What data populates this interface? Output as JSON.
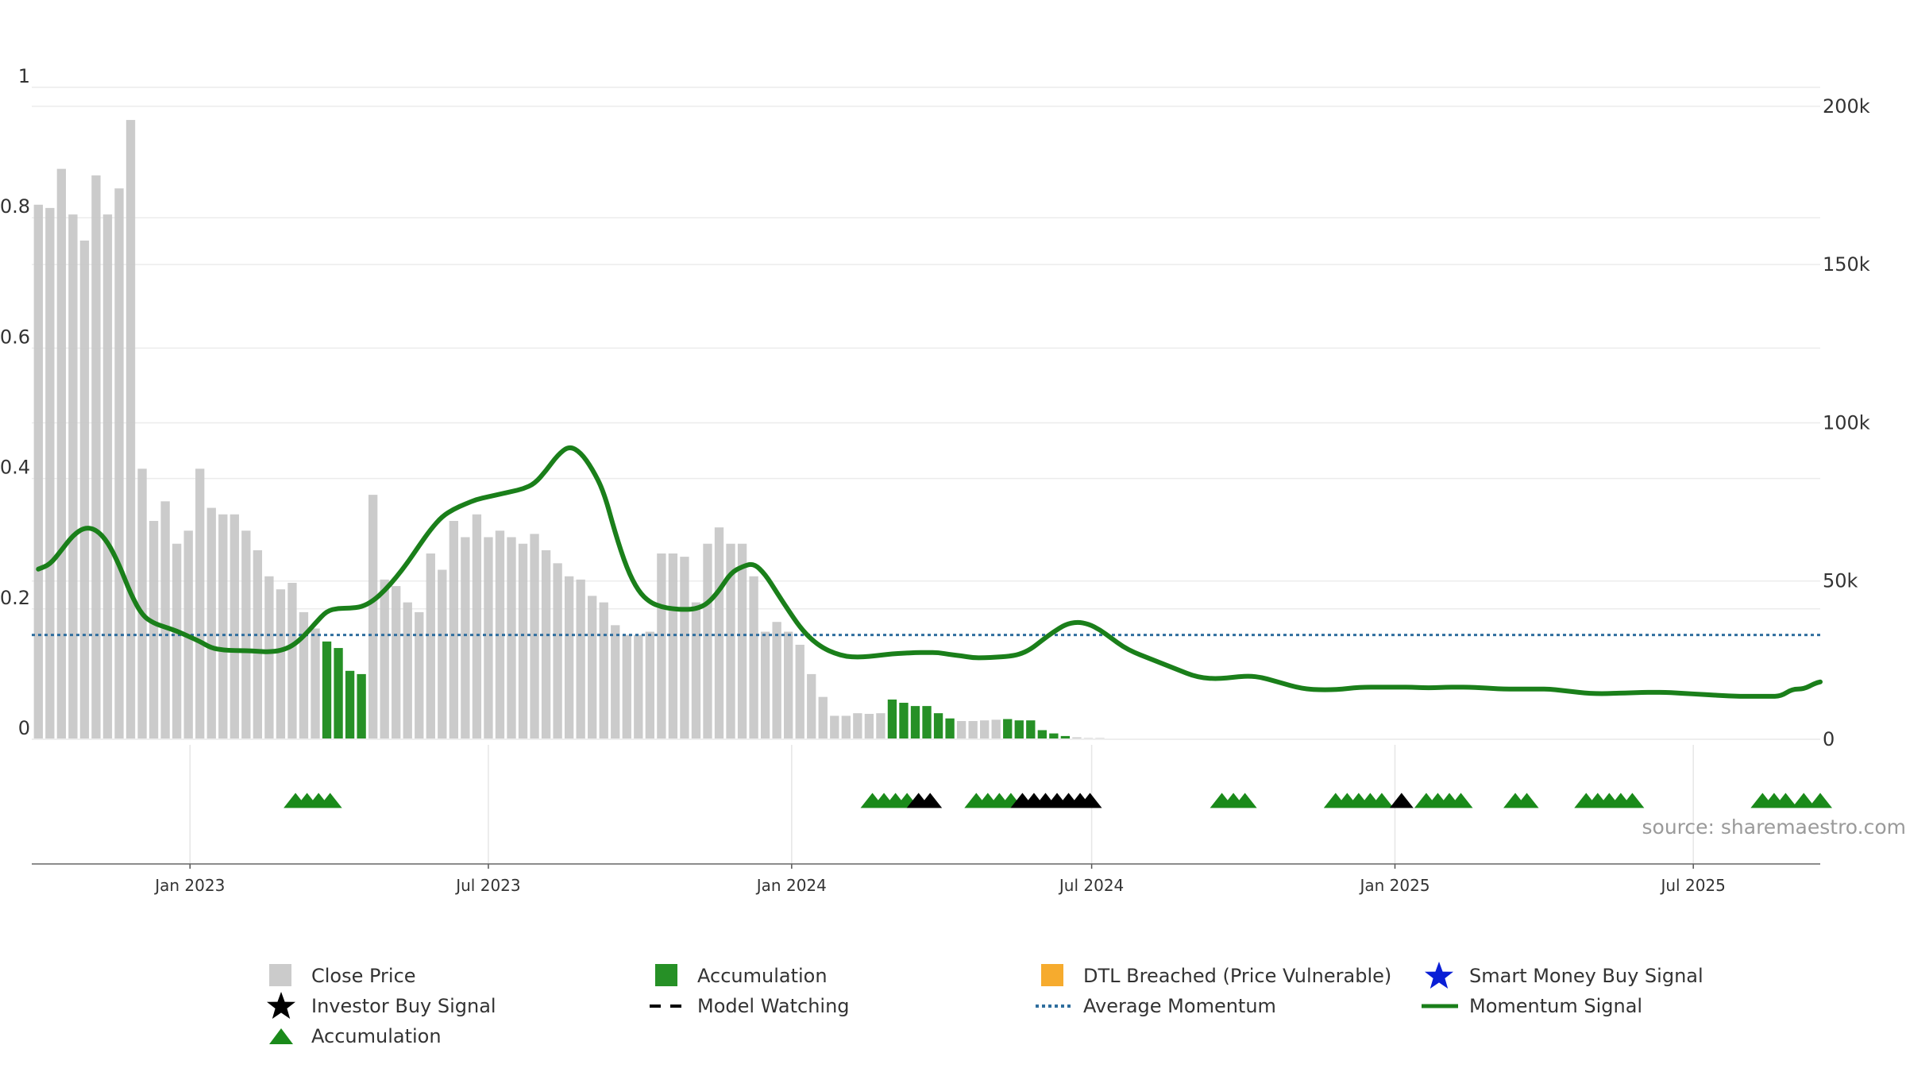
{
  "chart_data": {
    "type": "bar",
    "source_text": "source: sharemaestro.com",
    "x_tick_labels": [
      "Jan 2023",
      "Jul 2023",
      "Jan 2024",
      "Jul 2024",
      "Jan 2025",
      "Jul 2025"
    ],
    "x_tick_dates": [
      "2023-01-01",
      "2023-07-01",
      "2024-01-01",
      "2024-07-01",
      "2025-01-01",
      "2025-07-01"
    ],
    "xlim": [
      "2022-09-27",
      "2025-09-16"
    ],
    "y_left": {
      "ticks": [
        "0",
        "0.2",
        "0.4",
        "0.6",
        "0.8",
        "1"
      ],
      "tick_values": [
        0,
        0.2,
        0.4,
        0.6,
        0.8,
        1.0
      ],
      "lim": [
        0,
        1
      ]
    },
    "y_right": {
      "ticks": [
        "0",
        "50k",
        "100k",
        "150k",
        "200k"
      ],
      "tick_values": [
        0,
        50000,
        100000,
        150000,
        200000
      ],
      "lim": [
        0,
        206000
      ]
    },
    "grid": true,
    "legend_position": "bottom",
    "colors": {
      "close_price": "#c8c8c8",
      "accumulation": "#1a8a1a",
      "dtl_breached": "#f5a623",
      "smart_money": "#0a1fd6",
      "investor_buy": "#000000",
      "model_watching": "#000000",
      "average_momentum": "#2f6e9e",
      "momentum_signal": "#1a7f1a"
    },
    "legend": [
      {
        "key": "close_price",
        "label": "Close Price",
        "marker": "square"
      },
      {
        "key": "accumulation",
        "label": "Accumulation",
        "marker": "square"
      },
      {
        "key": "dtl_breached",
        "label": "DTL Breached (Price Vulnerable)",
        "marker": "square"
      },
      {
        "key": "smart_money",
        "label": "Smart Money Buy Signal",
        "marker": "star"
      },
      {
        "key": "investor_buy",
        "label": "Investor Buy Signal",
        "marker": "star"
      },
      {
        "key": "model_watching",
        "label": "Model Watching",
        "marker": "dash"
      },
      {
        "key": "average_momentum",
        "label": "Average Momentum",
        "marker": "dotted"
      },
      {
        "key": "momentum_signal",
        "label": "Momentum Signal",
        "marker": "line"
      },
      {
        "key": "accumulation_triangle",
        "label": "Accumulation",
        "marker": "triangle"
      }
    ],
    "close_price_bars": {
      "start_date": "2022-10-01",
      "step_days": 7,
      "values": [
        0.82,
        0.815,
        0.875,
        0.805,
        0.765,
        0.865,
        0.805,
        0.845,
        0.95,
        0.415,
        0.335,
        0.365,
        0.3,
        0.32,
        0.415,
        0.355,
        0.345,
        0.345,
        0.32,
        0.29,
        0.25,
        0.23,
        0.24,
        0.195,
        0.17,
        0.15,
        0.14,
        0.105,
        0.1,
        0.375,
        0.245,
        0.235,
        0.21,
        0.195,
        0.285,
        0.26,
        0.335,
        0.31,
        0.345,
        0.31,
        0.32,
        0.31,
        0.3,
        0.315,
        0.29,
        0.27,
        0.25,
        0.245,
        0.22,
        0.21,
        0.175,
        0.16,
        0.16,
        0.165,
        0.285,
        0.285,
        0.28,
        0.21,
        0.3,
        0.325,
        0.3,
        0.3,
        0.25,
        0.165,
        0.18,
        0.165,
        0.145,
        0.1,
        0.065,
        0.036,
        0.036,
        0.04,
        0.039,
        0.04,
        0.061,
        0.056,
        0.051,
        0.051,
        0.04,
        0.032,
        0.028,
        0.028,
        0.029,
        0.03,
        0.031,
        0.029,
        0.029,
        0.014,
        0.009,
        0.005,
        0.003,
        0.002,
        0.002,
        0.001,
        0.001,
        0.001
      ]
    },
    "accumulation_bar_indices": [
      25,
      26,
      27,
      28,
      74,
      75,
      76,
      77,
      78,
      79,
      84,
      85,
      86,
      87,
      88,
      89
    ],
    "momentum_signal": {
      "points": [
        [
          "2022-10-01",
          0.261
        ],
        [
          "2022-10-08",
          0.268
        ],
        [
          "2022-10-15",
          0.29
        ],
        [
          "2022-10-22",
          0.313
        ],
        [
          "2022-10-29",
          0.325
        ],
        [
          "2022-11-05",
          0.322
        ],
        [
          "2022-11-12",
          0.303
        ],
        [
          "2022-11-19",
          0.268
        ],
        [
          "2022-11-26",
          0.223
        ],
        [
          "2022-12-03",
          0.19
        ],
        [
          "2022-12-10",
          0.178
        ],
        [
          "2022-12-17",
          0.172
        ],
        [
          "2022-12-24",
          0.166
        ],
        [
          "2022-12-31",
          0.158
        ],
        [
          "2023-01-07",
          0.15
        ],
        [
          "2023-01-14",
          0.14
        ],
        [
          "2023-01-21",
          0.137
        ],
        [
          "2023-01-28",
          0.136
        ],
        [
          "2023-02-04",
          0.136
        ],
        [
          "2023-02-11",
          0.135
        ],
        [
          "2023-02-18",
          0.134
        ],
        [
          "2023-02-25",
          0.136
        ],
        [
          "2023-03-04",
          0.143
        ],
        [
          "2023-03-11",
          0.158
        ],
        [
          "2023-03-18",
          0.178
        ],
        [
          "2023-03-25",
          0.197
        ],
        [
          "2023-04-01",
          0.201
        ],
        [
          "2023-04-08",
          0.201
        ],
        [
          "2023-04-15",
          0.203
        ],
        [
          "2023-04-22",
          0.212
        ],
        [
          "2023-04-29",
          0.228
        ],
        [
          "2023-05-06",
          0.248
        ],
        [
          "2023-05-13",
          0.271
        ],
        [
          "2023-05-20",
          0.297
        ],
        [
          "2023-05-27",
          0.322
        ],
        [
          "2023-06-03",
          0.342
        ],
        [
          "2023-06-10",
          0.353
        ],
        [
          "2023-06-17",
          0.361
        ],
        [
          "2023-06-24",
          0.368
        ],
        [
          "2023-07-01",
          0.372
        ],
        [
          "2023-07-08",
          0.376
        ],
        [
          "2023-07-15",
          0.38
        ],
        [
          "2023-07-22",
          0.384
        ],
        [
          "2023-07-29",
          0.392
        ],
        [
          "2023-08-05",
          0.412
        ],
        [
          "2023-08-12",
          0.436
        ],
        [
          "2023-08-19",
          0.45
        ],
        [
          "2023-08-26",
          0.44
        ],
        [
          "2023-09-02",
          0.415
        ],
        [
          "2023-09-09",
          0.38
        ],
        [
          "2023-09-16",
          0.316
        ],
        [
          "2023-09-23",
          0.262
        ],
        [
          "2023-09-30",
          0.227
        ],
        [
          "2023-10-07",
          0.21
        ],
        [
          "2023-10-14",
          0.203
        ],
        [
          "2023-10-21",
          0.2
        ],
        [
          "2023-10-28",
          0.199
        ],
        [
          "2023-11-04",
          0.2
        ],
        [
          "2023-11-11",
          0.208
        ],
        [
          "2023-11-18",
          0.228
        ],
        [
          "2023-11-25",
          0.255
        ],
        [
          "2023-12-02",
          0.265
        ],
        [
          "2023-12-09",
          0.27
        ],
        [
          "2023-12-16",
          0.253
        ],
        [
          "2023-12-23",
          0.225
        ],
        [
          "2023-12-30",
          0.198
        ],
        [
          "2024-01-06",
          0.172
        ],
        [
          "2024-01-13",
          0.153
        ],
        [
          "2024-01-20",
          0.14
        ],
        [
          "2024-01-27",
          0.132
        ],
        [
          "2024-02-03",
          0.127
        ],
        [
          "2024-02-10",
          0.126
        ],
        [
          "2024-02-17",
          0.127
        ],
        [
          "2024-02-24",
          0.129
        ],
        [
          "2024-03-02",
          0.131
        ],
        [
          "2024-03-09",
          0.132
        ],
        [
          "2024-03-16",
          0.133
        ],
        [
          "2024-03-23",
          0.133
        ],
        [
          "2024-03-30",
          0.133
        ],
        [
          "2024-04-06",
          0.13
        ],
        [
          "2024-04-13",
          0.128
        ],
        [
          "2024-04-20",
          0.125
        ],
        [
          "2024-04-27",
          0.125
        ],
        [
          "2024-05-04",
          0.126
        ],
        [
          "2024-05-11",
          0.127
        ],
        [
          "2024-05-18",
          0.13
        ],
        [
          "2024-05-25",
          0.138
        ],
        [
          "2024-06-01",
          0.152
        ],
        [
          "2024-06-08",
          0.165
        ],
        [
          "2024-06-15",
          0.176
        ],
        [
          "2024-06-22",
          0.18
        ],
        [
          "2024-06-29",
          0.177
        ],
        [
          "2024-07-06",
          0.168
        ],
        [
          "2024-07-13",
          0.155
        ],
        [
          "2024-07-20",
          0.142
        ],
        [
          "2024-07-27",
          0.133
        ],
        [
          "2024-08-03",
          0.126
        ],
        [
          "2024-08-10",
          0.119
        ],
        [
          "2024-08-17",
          0.112
        ],
        [
          "2024-08-24",
          0.105
        ],
        [
          "2024-08-31",
          0.098
        ],
        [
          "2024-09-07",
          0.094
        ],
        [
          "2024-09-14",
          0.093
        ],
        [
          "2024-09-21",
          0.094
        ],
        [
          "2024-09-28",
          0.096
        ],
        [
          "2024-10-05",
          0.097
        ],
        [
          "2024-10-12",
          0.095
        ],
        [
          "2024-10-19",
          0.09
        ],
        [
          "2024-10-26",
          0.085
        ],
        [
          "2024-11-02",
          0.08
        ],
        [
          "2024-11-09",
          0.077
        ],
        [
          "2024-11-16",
          0.076
        ],
        [
          "2024-11-23",
          0.076
        ],
        [
          "2024-11-30",
          0.077
        ],
        [
          "2024-12-07",
          0.079
        ],
        [
          "2024-12-14",
          0.08
        ],
        [
          "2024-12-21",
          0.08
        ],
        [
          "2024-12-28",
          0.08
        ],
        [
          "2025-01-04",
          0.08
        ],
        [
          "2025-01-11",
          0.08
        ],
        [
          "2025-01-18",
          0.079
        ],
        [
          "2025-01-25",
          0.079
        ],
        [
          "2025-02-01",
          0.08
        ],
        [
          "2025-02-08",
          0.08
        ],
        [
          "2025-02-15",
          0.08
        ],
        [
          "2025-02-22",
          0.079
        ],
        [
          "2025-03-01",
          0.078
        ],
        [
          "2025-03-08",
          0.077
        ],
        [
          "2025-03-15",
          0.077
        ],
        [
          "2025-03-22",
          0.077
        ],
        [
          "2025-03-29",
          0.077
        ],
        [
          "2025-04-05",
          0.077
        ],
        [
          "2025-04-12",
          0.075
        ],
        [
          "2025-04-19",
          0.073
        ],
        [
          "2025-04-26",
          0.071
        ],
        [
          "2025-05-03",
          0.07
        ],
        [
          "2025-05-10",
          0.07
        ],
        [
          "2025-05-17",
          0.071
        ],
        [
          "2025-05-24",
          0.071
        ],
        [
          "2025-05-31",
          0.072
        ],
        [
          "2025-06-07",
          0.072
        ],
        [
          "2025-06-14",
          0.072
        ],
        [
          "2025-06-21",
          0.071
        ],
        [
          "2025-06-28",
          0.07
        ],
        [
          "2025-07-05",
          0.069
        ],
        [
          "2025-07-12",
          0.068
        ],
        [
          "2025-07-19",
          0.067
        ],
        [
          "2025-07-26",
          0.066
        ],
        [
          "2025-08-02",
          0.066
        ],
        [
          "2025-08-09",
          0.066
        ],
        [
          "2025-08-16",
          0.066
        ],
        [
          "2025-08-23",
          0.066
        ],
        [
          "2025-08-30",
          0.077
        ],
        [
          "2025-09-06",
          0.077
        ],
        [
          "2025-09-13",
          0.086
        ],
        [
          "2025-09-16",
          0.088
        ]
      ]
    },
    "average_momentum": 0.16,
    "signal_triangles": [
      {
        "date": "2023-03-06",
        "type": "accumulation"
      },
      {
        "date": "2023-03-13",
        "type": "accumulation"
      },
      {
        "date": "2023-03-20",
        "type": "accumulation"
      },
      {
        "date": "2023-03-27",
        "type": "accumulation"
      },
      {
        "date": "2024-02-19",
        "type": "accumulation"
      },
      {
        "date": "2024-02-26",
        "type": "accumulation"
      },
      {
        "date": "2024-03-04",
        "type": "accumulation"
      },
      {
        "date": "2024-03-11",
        "type": "accumulation"
      },
      {
        "date": "2024-03-18",
        "type": "investor_buy"
      },
      {
        "date": "2024-03-25",
        "type": "investor_buy"
      },
      {
        "date": "2024-04-22",
        "type": "accumulation"
      },
      {
        "date": "2024-04-29",
        "type": "accumulation"
      },
      {
        "date": "2024-05-06",
        "type": "accumulation"
      },
      {
        "date": "2024-05-13",
        "type": "accumulation"
      },
      {
        "date": "2024-05-20",
        "type": "investor_buy"
      },
      {
        "date": "2024-05-27",
        "type": "investor_buy"
      },
      {
        "date": "2024-06-03",
        "type": "investor_buy"
      },
      {
        "date": "2024-06-10",
        "type": "investor_buy"
      },
      {
        "date": "2024-06-17",
        "type": "investor_buy"
      },
      {
        "date": "2024-06-24",
        "type": "investor_buy"
      },
      {
        "date": "2024-06-30",
        "type": "investor_buy"
      },
      {
        "date": "2024-09-18",
        "type": "accumulation"
      },
      {
        "date": "2024-09-25",
        "type": "accumulation"
      },
      {
        "date": "2024-10-02",
        "type": "accumulation"
      },
      {
        "date": "2024-11-26",
        "type": "accumulation"
      },
      {
        "date": "2024-12-03",
        "type": "accumulation"
      },
      {
        "date": "2024-12-10",
        "type": "accumulation"
      },
      {
        "date": "2024-12-17",
        "type": "accumulation"
      },
      {
        "date": "2024-12-24",
        "type": "accumulation"
      },
      {
        "date": "2025-01-05",
        "type": "investor_buy"
      },
      {
        "date": "2025-01-20",
        "type": "accumulation"
      },
      {
        "date": "2025-01-27",
        "type": "accumulation"
      },
      {
        "date": "2025-02-03",
        "type": "accumulation"
      },
      {
        "date": "2025-02-10",
        "type": "accumulation"
      },
      {
        "date": "2025-03-15",
        "type": "accumulation"
      },
      {
        "date": "2025-03-22",
        "type": "accumulation"
      },
      {
        "date": "2025-04-27",
        "type": "accumulation"
      },
      {
        "date": "2025-05-04",
        "type": "accumulation"
      },
      {
        "date": "2025-05-11",
        "type": "accumulation"
      },
      {
        "date": "2025-05-18",
        "type": "accumulation"
      },
      {
        "date": "2025-05-25",
        "type": "accumulation"
      },
      {
        "date": "2025-08-12",
        "type": "accumulation"
      },
      {
        "date": "2025-08-19",
        "type": "accumulation"
      },
      {
        "date": "2025-08-26",
        "type": "accumulation"
      },
      {
        "date": "2025-09-06",
        "type": "accumulation"
      },
      {
        "date": "2025-09-16",
        "type": "accumulation"
      }
    ]
  }
}
